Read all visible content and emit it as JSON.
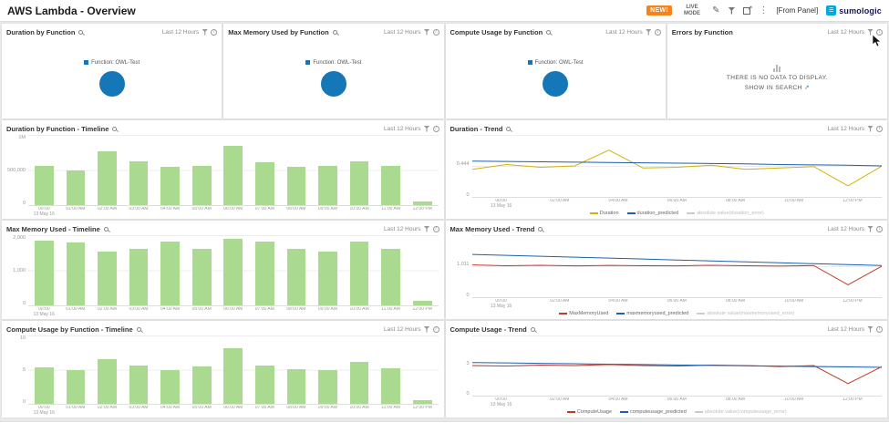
{
  "topbar": {
    "title": "AWS Lambda - Overview",
    "new_badge": "NEW!",
    "live_mode": "LIVE MODE",
    "from_panel": "[From Panel]",
    "logo_text": "sumologic"
  },
  "icons": {
    "edit": "✎",
    "more": "⋮",
    "external_link": "↗",
    "menu": "☰"
  },
  "common": {
    "time_range": "Last 12 Hours"
  },
  "panels": [
    {
      "title": "Duration by Function"
    },
    {
      "title": "Max Memory Used by Function"
    },
    {
      "title": "Compute Usage by Function"
    },
    {
      "title": "Errors by Function"
    },
    {
      "title": "Duration by Function - Timeline"
    },
    {
      "title": "Duration - Trend"
    },
    {
      "title": "Max Memory Used - Timeline"
    },
    {
      "title": "Max Memory Used - Trend"
    },
    {
      "title": "Compute Usage by Function - Timeline"
    },
    {
      "title": "Compute Usage - Trend"
    }
  ],
  "no_data": {
    "line1": "THERE IS NO DATA TO DISPLAY.",
    "line2": "SHOW IN SEARCH"
  },
  "chart_data": [
    {
      "id": "duration_donut",
      "type": "pie",
      "title": "Duration by Function",
      "labels": [
        "Function: OWL-Test"
      ],
      "values": [
        100
      ],
      "colors": [
        "#1577b8"
      ]
    },
    {
      "id": "memory_donut",
      "type": "pie",
      "title": "Max Memory Used by Function",
      "labels": [
        "Function: OWL-Test"
      ],
      "values": [
        100
      ],
      "colors": [
        "#1577b8"
      ]
    },
    {
      "id": "compute_donut",
      "type": "pie",
      "title": "Compute Usage by Function",
      "labels": [
        "Function: OWL-Test"
      ],
      "values": [
        100
      ],
      "colors": [
        "#1577b8"
      ]
    },
    {
      "id": "duration_timeline",
      "type": "bar",
      "title": "Duration by Function - Timeline",
      "categories": [
        "00:00\n13 May 16",
        "01:00 AM",
        "02:00 AM",
        "03:00 AM",
        "04:00 AM",
        "05:00 AM",
        "06:00 AM",
        "07:00 AM",
        "08:00 AM",
        "09:00 AM",
        "10:00 AM",
        "11:00 AM",
        "12:00 PM"
      ],
      "values": [
        560000,
        500000,
        770000,
        620000,
        545000,
        560000,
        850000,
        610000,
        540000,
        555000,
        630000,
        560000,
        55000
      ],
      "ymax": 1000000,
      "yticks": [
        "1M",
        "500,000",
        "0"
      ],
      "bar_color": "#a9da90"
    },
    {
      "id": "duration_trend",
      "type": "line",
      "title": "Duration - Trend",
      "x_ticks": [
        "00:00\n13 May 16",
        "02:00 AM",
        "04:00 AM",
        "06:00 AM",
        "08:00 AM",
        "10:00 AM",
        "12:00 PM"
      ],
      "ymax": 0.9,
      "yticks": [
        "",
        "0.444",
        "0"
      ],
      "series": [
        {
          "name": "Duration",
          "color": "#d4b106",
          "values": [
            0.4,
            0.47,
            0.43,
            0.45,
            0.68,
            0.42,
            0.43,
            0.46,
            0.4,
            0.42,
            0.44,
            0.16,
            0.45
          ]
        },
        {
          "name": "duration_predicted",
          "color": "#1f5fad",
          "values": [
            0.52,
            0.515,
            0.51,
            0.505,
            0.5,
            0.495,
            0.49,
            0.485,
            0.48,
            0.47,
            0.465,
            0.46,
            0.45
          ]
        }
      ],
      "disabled_legend": "absolute value(duration_error)"
    },
    {
      "id": "memory_timeline",
      "type": "bar",
      "title": "Max Memory Used - Timeline",
      "categories": [
        "00:00\n13 May 16",
        "01:00 AM",
        "02:00 AM",
        "03:00 AM",
        "04:00 AM",
        "05:00 AM",
        "06:00 AM",
        "07:00 AM",
        "08:00 AM",
        "09:00 AM",
        "10:00 AM",
        "11:00 AM",
        "12:00 PM"
      ],
      "values": [
        1850,
        1800,
        1520,
        1600,
        1820,
        1620,
        1900,
        1820,
        1610,
        1530,
        1820,
        1600,
        140
      ],
      "ymax": 2000,
      "yticks": [
        "2,000",
        "1,000",
        "0"
      ],
      "bar_color": "#a9da90"
    },
    {
      "id": "memory_trend",
      "type": "line",
      "title": "Max Memory Used - Trend",
      "x_ticks": [
        "00:00\n13 May 16",
        "02:00 AM",
        "04:00 AM",
        "06:00 AM",
        "08:00 AM",
        "10:00 AM",
        "12:00 PM"
      ],
      "ymax": 2000,
      "yticks": [
        "",
        "1,011",
        "0"
      ],
      "series": [
        {
          "name": "MaxMemoryUsed",
          "color": "#c0392b",
          "values": [
            1040,
            1015,
            1030,
            1010,
            1025,
            1015,
            1010,
            1030,
            1015,
            1005,
            1020,
            400,
            1005
          ]
        },
        {
          "name": "maxmemoryused_predicted",
          "color": "#1f5fad",
          "values": [
            1380,
            1350,
            1320,
            1290,
            1260,
            1230,
            1200,
            1170,
            1140,
            1110,
            1080,
            1050,
            1020
          ]
        }
      ],
      "disabled_legend": "absolute value(maxmemoryused_error)"
    },
    {
      "id": "compute_timeline",
      "type": "bar",
      "title": "Compute Usage by Function - Timeline",
      "categories": [
        "00:00\n13 May 16",
        "01:00 AM",
        "02:00 AM",
        "03:00 AM",
        "04:00 AM",
        "05:00 AM",
        "06:00 AM",
        "07:00 AM",
        "08:00 AM",
        "09:00 AM",
        "10:00 AM",
        "11:00 AM",
        "12:00 PM"
      ],
      "values": [
        5.4,
        4.9,
        6.6,
        5.6,
        5.0,
        5.5,
        8.2,
        5.6,
        5.1,
        5.0,
        6.1,
        5.2,
        0.5
      ],
      "ymax": 10,
      "yticks": [
        "10",
        "5",
        "0"
      ],
      "bar_color": "#a9da90"
    },
    {
      "id": "compute_trend",
      "type": "line",
      "title": "Compute Usage - Trend",
      "x_ticks": [
        "00:00\n13 May 16",
        "02:00 AM",
        "04:00 AM",
        "06:00 AM",
        "08:00 AM",
        "10:00 AM",
        "12:00 PM"
      ],
      "ymax": 6,
      "yticks": [
        "",
        "3",
        "0"
      ],
      "series": [
        {
          "name": "ComputeUsage",
          "color": "#c0392b",
          "values": [
            3.0,
            2.95,
            3.05,
            3.0,
            3.1,
            3.0,
            2.95,
            3.05,
            3.0,
            2.9,
            3.0,
            1.2,
            2.9
          ]
        },
        {
          "name": "computeusage_predicted",
          "color": "#1f5fad",
          "values": [
            3.3,
            3.26,
            3.22,
            3.18,
            3.14,
            3.1,
            3.06,
            3.02,
            2.98,
            2.94,
            2.9,
            2.86,
            2.82
          ]
        }
      ],
      "disabled_legend": "absolute value(computeusage_error)"
    }
  ]
}
